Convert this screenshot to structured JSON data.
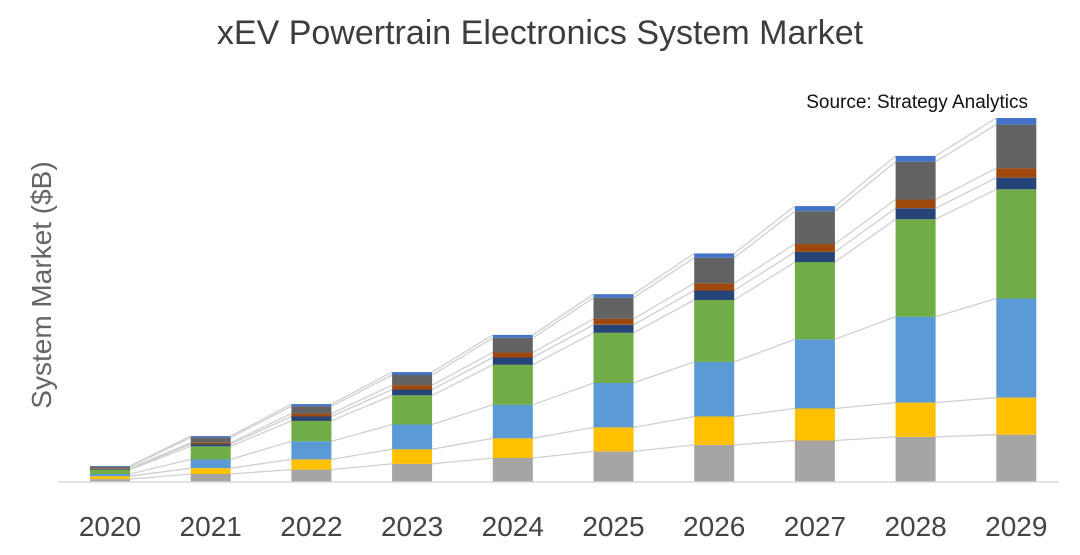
{
  "chart_data": {
    "type": "bar",
    "stacked": true,
    "title": "xEV Powertrain Electronics System Market",
    "source": "Source: Strategy Analytics",
    "xlabel": "",
    "ylabel": "System Market ($B)",
    "categories": [
      "2020",
      "2021",
      "2022",
      "2023",
      "2024",
      "2025",
      "2026",
      "2027",
      "2028",
      "2029"
    ],
    "y_axis_visible": false,
    "connector_lines": true,
    "grid": false,
    "series": [
      {
        "color": "#a5a5a5",
        "values": [
          2.0,
          5.5,
          8.5,
          12.5,
          16.5,
          21.0,
          25.5,
          28.5,
          31.0,
          32.5
        ]
      },
      {
        "color": "#ffc000",
        "values": [
          2.0,
          4.0,
          7.0,
          10.0,
          13.5,
          16.5,
          19.5,
          22.0,
          23.5,
          25.5
        ]
      },
      {
        "color": "#5b9bd5",
        "values": [
          1.5,
          6.0,
          12.5,
          17.0,
          23.0,
          30.5,
          37.5,
          47.5,
          59.0,
          68.0
        ]
      },
      {
        "color": "#70ad47",
        "values": [
          3.0,
          9.0,
          14.0,
          20.0,
          27.5,
          34.5,
          42.5,
          53.0,
          67.0,
          75.0
        ]
      },
      {
        "color": "#264478",
        "values": [
          0.5,
          1.5,
          3.0,
          4.0,
          5.0,
          5.5,
          6.5,
          7.0,
          7.5,
          8.0
        ]
      },
      {
        "color": "#9e480e",
        "values": [
          0.5,
          1.0,
          2.0,
          3.0,
          3.5,
          4.0,
          5.0,
          5.5,
          6.0,
          6.5
        ]
      },
      {
        "color": "#636363",
        "values": [
          1.0,
          3.5,
          5.0,
          7.0,
          10.0,
          14.5,
          17.5,
          22.5,
          26.0,
          30.0
        ]
      },
      {
        "color": "#4472c4",
        "values": [
          0.5,
          1.0,
          1.5,
          2.0,
          2.0,
          2.5,
          3.0,
          3.5,
          4.0,
          4.5
        ]
      }
    ]
  }
}
